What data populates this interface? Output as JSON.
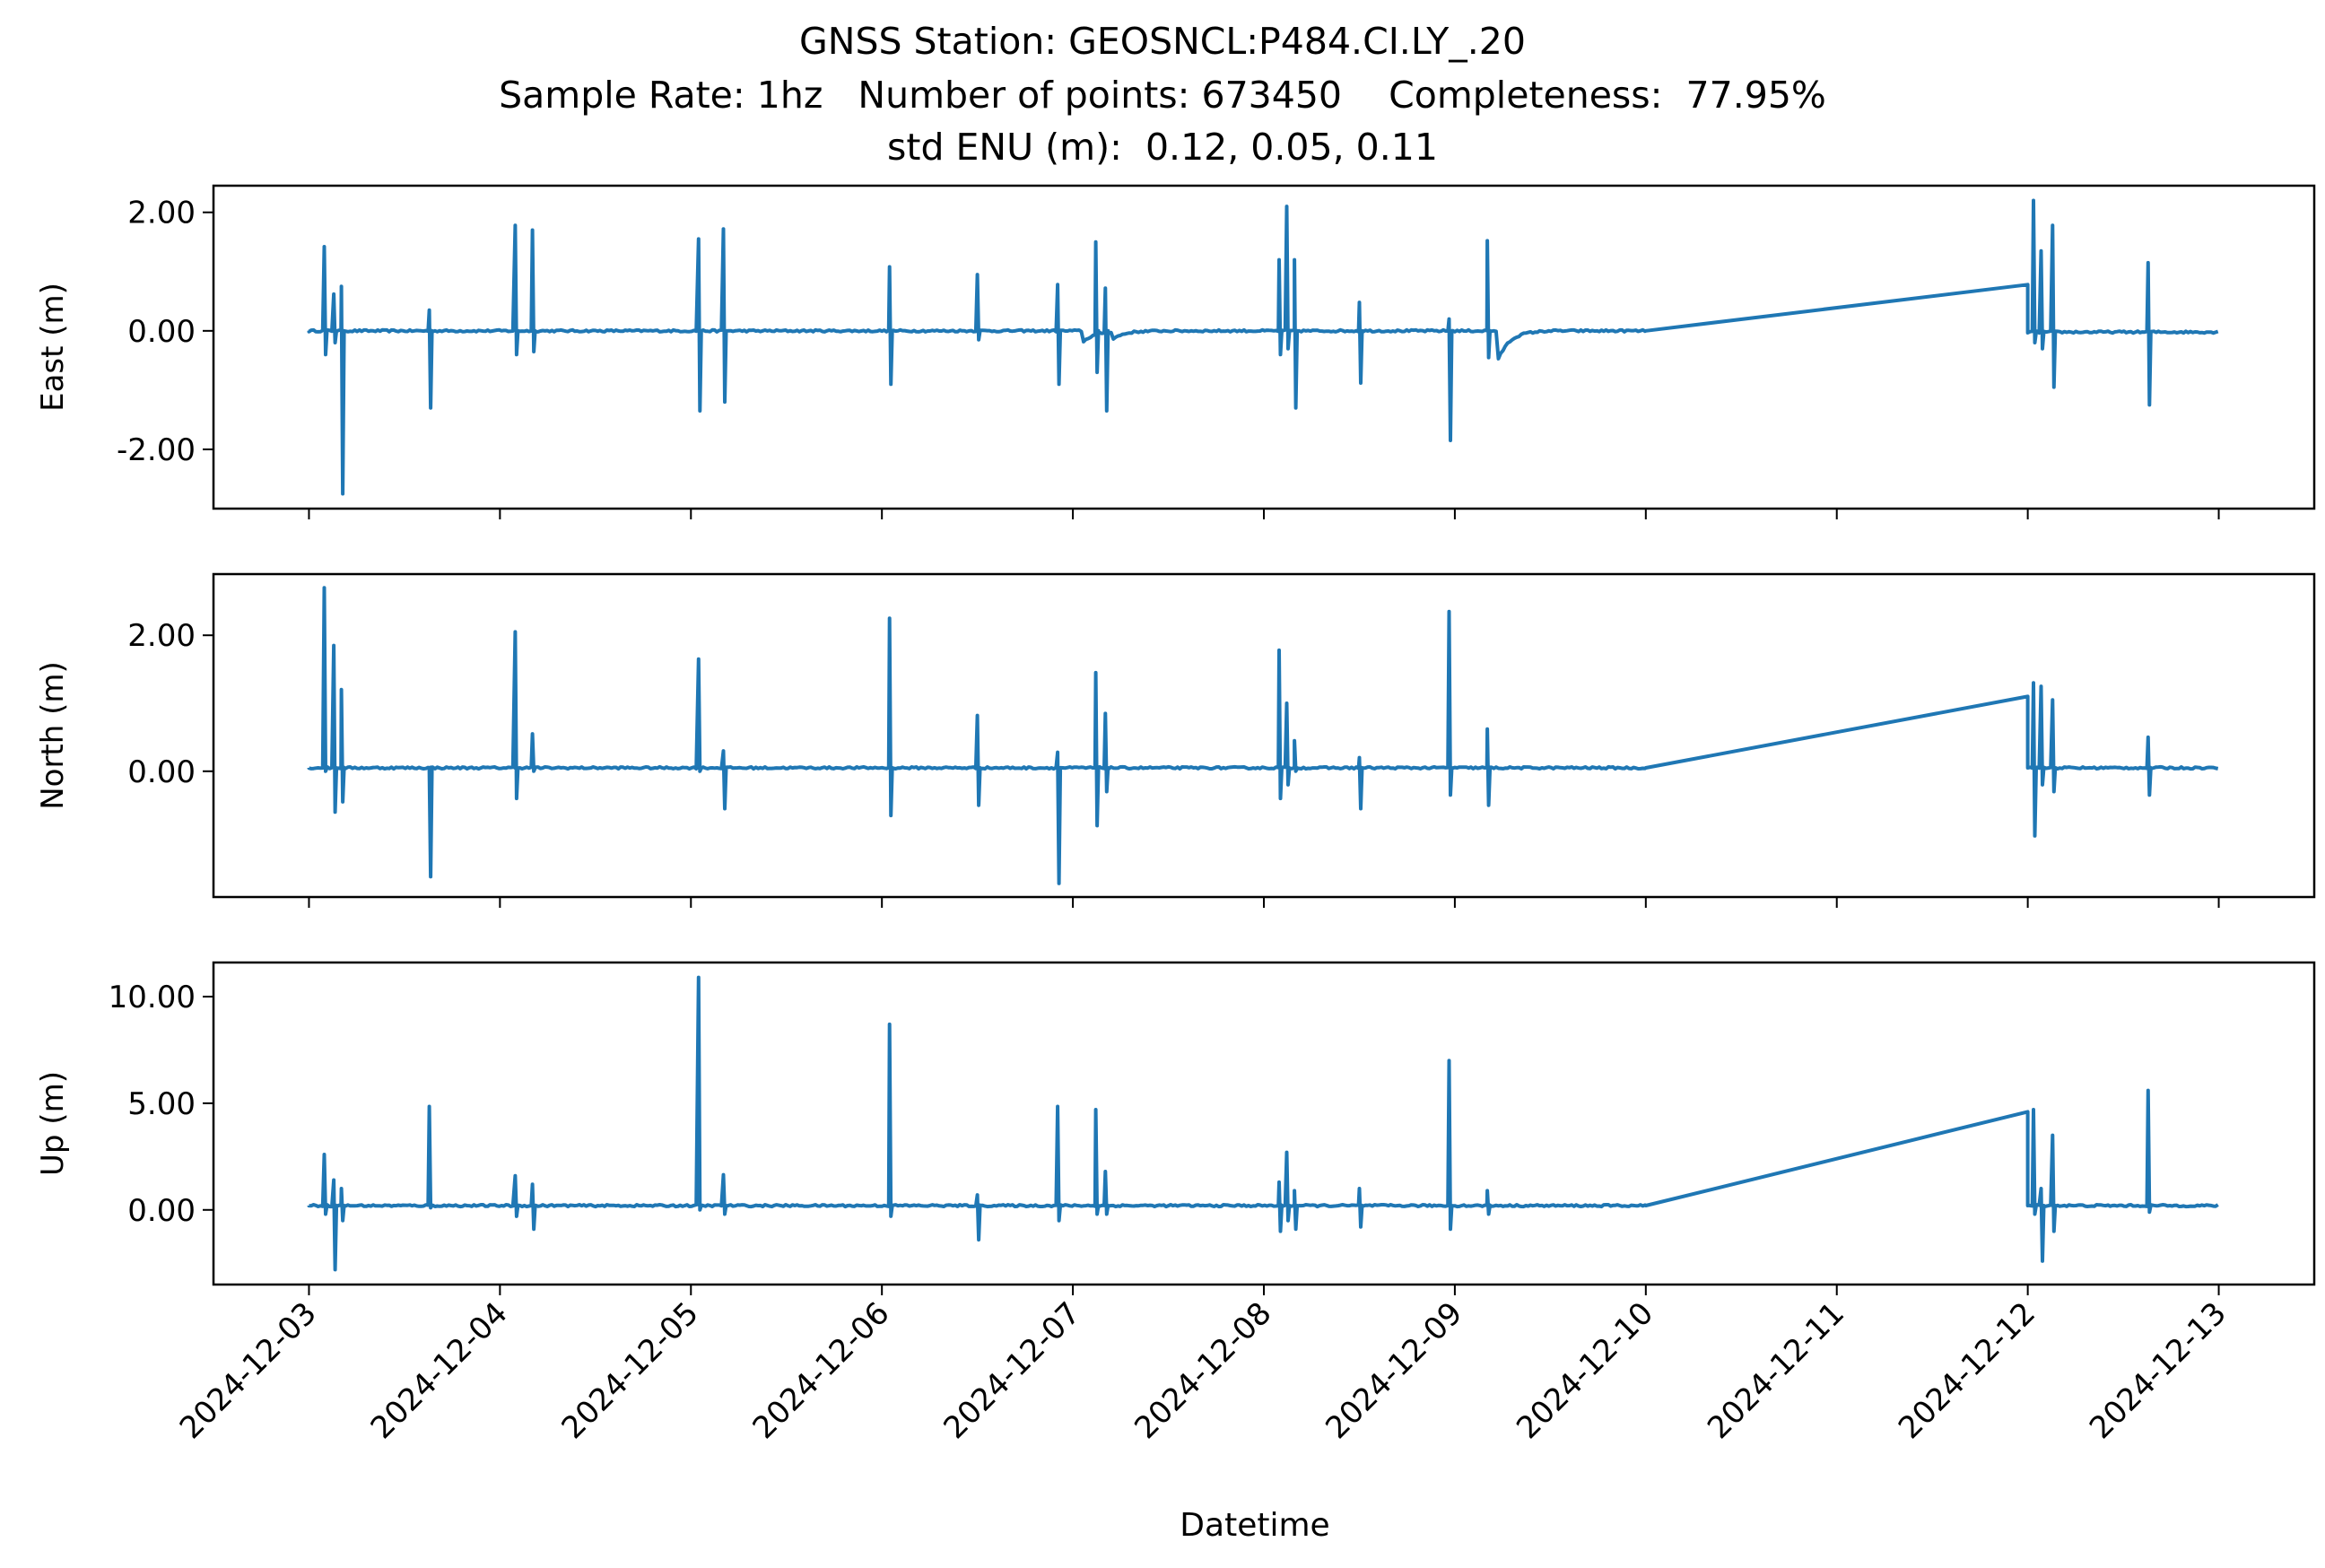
{
  "figure": {
    "title_lines": [
      "GNSS Station: GEOSNCL:P484.CI.LY_.20",
      "Sample Rate: 1hz   Number of points: 673450    Completeness:  77.95%",
      "std ENU (m):  0.12, 0.05, 0.11"
    ]
  },
  "chart_data": {
    "type": "line",
    "title": "GNSS Station: GEOSNCL:P484.CI.LY_.20",
    "subtitle": "Sample Rate: 1hz   Number of points: 673450    Completeness:  77.95%   std ENU (m):  0.12, 0.05, 0.11",
    "xlabel": "Datetime",
    "x_range_days": [
      -0.5,
      10.5
    ],
    "x_ticks": [
      {
        "day": 0,
        "label": "2024-12-03"
      },
      {
        "day": 1,
        "label": "2024-12-04"
      },
      {
        "day": 2,
        "label": "2024-12-05"
      },
      {
        "day": 3,
        "label": "2024-12-06"
      },
      {
        "day": 4,
        "label": "2024-12-07"
      },
      {
        "day": 5,
        "label": "2024-12-08"
      },
      {
        "day": 6,
        "label": "2024-12-09"
      },
      {
        "day": 7,
        "label": "2024-12-10"
      },
      {
        "day": 8,
        "label": "2024-12-11"
      },
      {
        "day": 9,
        "label": "2024-12-12"
      },
      {
        "day": 10,
        "label": "2024-12-13"
      }
    ],
    "line_color": "#1f77b4",
    "panels": [
      {
        "name": "east",
        "ylabel": "East (m)",
        "ylim": [
          -3.0,
          2.45
        ],
        "yticks": [
          {
            "v": 2,
            "label": "2.00"
          },
          {
            "v": 0,
            "label": "0.00"
          },
          {
            "v": -2,
            "label": "-2.00"
          }
        ],
        "baseline_start": [
          0,
          0.0
        ],
        "baseline_end": [
          7.0,
          0.0
        ],
        "gap_to": [
          9.0,
          0.78
        ],
        "tail_end": [
          10.0,
          -0.02
        ],
        "dips": [
          {
            "x": 4.05,
            "y": -0.2
          },
          {
            "x": 4.2,
            "y": -0.15
          },
          {
            "x": 6.22,
            "y": -0.55
          }
        ],
        "spikes": [
          {
            "x": 0.08,
            "hi": 1.42,
            "lo": -0.4
          },
          {
            "x": 0.13,
            "hi": 0.62,
            "lo": -0.2
          },
          {
            "x": 0.17,
            "hi": 0.75,
            "lo": -2.75
          },
          {
            "x": 0.63,
            "hi": 0.35,
            "lo": -1.3
          },
          {
            "x": 1.08,
            "hi": 1.78,
            "lo": -0.4
          },
          {
            "x": 1.17,
            "hi": 1.7,
            "lo": -0.35
          },
          {
            "x": 2.04,
            "hi": 1.55,
            "lo": -1.35
          },
          {
            "x": 2.17,
            "hi": 1.72,
            "lo": -1.2
          },
          {
            "x": 3.04,
            "hi": 1.08,
            "lo": -0.9
          },
          {
            "x": 3.5,
            "hi": 0.95,
            "lo": -0.15
          },
          {
            "x": 3.92,
            "hi": 0.78,
            "lo": -0.9
          },
          {
            "x": 4.12,
            "hi": 1.5,
            "lo": -0.7
          },
          {
            "x": 4.17,
            "hi": 0.72,
            "lo": -1.35
          },
          {
            "x": 5.08,
            "hi": 1.2,
            "lo": -0.4
          },
          {
            "x": 5.12,
            "hi": 2.1,
            "lo": -0.3
          },
          {
            "x": 5.16,
            "hi": 1.2,
            "lo": -1.3
          },
          {
            "x": 5.5,
            "hi": 0.48,
            "lo": -0.88
          },
          {
            "x": 5.97,
            "hi": 0.2,
            "lo": -1.85
          },
          {
            "x": 6.17,
            "hi": 1.52,
            "lo": -0.45
          },
          {
            "x": 9.03,
            "hi": 2.2,
            "lo": -0.2
          },
          {
            "x": 9.07,
            "hi": 1.35,
            "lo": -0.3
          },
          {
            "x": 9.13,
            "hi": 1.78,
            "lo": -0.95
          },
          {
            "x": 9.63,
            "hi": 1.15,
            "lo": -1.25
          }
        ]
      },
      {
        "name": "north",
        "ylabel": "North (m)",
        "ylim": [
          -1.85,
          2.9
        ],
        "yticks": [
          {
            "v": 2,
            "label": "2.00"
          },
          {
            "v": 0,
            "label": "0.00"
          }
        ],
        "baseline_start": [
          0,
          0.05
        ],
        "baseline_end": [
          7.0,
          0.05
        ],
        "gap_to": [
          9.0,
          1.1
        ],
        "tail_end": [
          10.0,
          0.05
        ],
        "dips": [],
        "spikes": [
          {
            "x": 0.08,
            "hi": 2.7,
            "lo": 0.0
          },
          {
            "x": 0.13,
            "hi": 1.85,
            "lo": -0.6
          },
          {
            "x": 0.17,
            "hi": 1.2,
            "lo": -0.45
          },
          {
            "x": 0.63,
            "hi": 0.05,
            "lo": -1.55
          },
          {
            "x": 1.08,
            "hi": 2.05,
            "lo": -0.4
          },
          {
            "x": 1.17,
            "hi": 0.55,
            "lo": 0.0
          },
          {
            "x": 2.04,
            "hi": 1.65,
            "lo": 0.0
          },
          {
            "x": 2.17,
            "hi": 0.3,
            "lo": -0.55
          },
          {
            "x": 3.04,
            "hi": 2.25,
            "lo": -0.65
          },
          {
            "x": 3.5,
            "hi": 0.82,
            "lo": -0.5
          },
          {
            "x": 3.92,
            "hi": 0.28,
            "lo": -1.65
          },
          {
            "x": 4.12,
            "hi": 1.45,
            "lo": -0.8
          },
          {
            "x": 4.17,
            "hi": 0.85,
            "lo": -0.3
          },
          {
            "x": 5.08,
            "hi": 1.78,
            "lo": -0.4
          },
          {
            "x": 5.12,
            "hi": 1.0,
            "lo": -0.2
          },
          {
            "x": 5.16,
            "hi": 0.45,
            "lo": 0.0
          },
          {
            "x": 5.5,
            "hi": 0.2,
            "lo": -0.55
          },
          {
            "x": 5.97,
            "hi": 2.35,
            "lo": -0.35
          },
          {
            "x": 6.17,
            "hi": 0.62,
            "lo": -0.5
          },
          {
            "x": 9.03,
            "hi": 1.3,
            "lo": -0.95
          },
          {
            "x": 9.07,
            "hi": 1.25,
            "lo": -0.2
          },
          {
            "x": 9.13,
            "hi": 1.05,
            "lo": -0.3
          },
          {
            "x": 9.63,
            "hi": 0.5,
            "lo": -0.35
          }
        ]
      },
      {
        "name": "up",
        "ylabel": "Up (m)",
        "ylim": [
          -3.5,
          11.6
        ],
        "yticks": [
          {
            "v": 10,
            "label": "10.00"
          },
          {
            "v": 5,
            "label": "5.00"
          },
          {
            "v": 0,
            "label": "0.00"
          }
        ],
        "baseline_start": [
          0,
          0.2
        ],
        "baseline_end": [
          7.0,
          0.2
        ],
        "gap_to": [
          9.0,
          4.6
        ],
        "tail_end": [
          10.0,
          0.2
        ],
        "dips": [],
        "spikes": [
          {
            "x": 0.08,
            "hi": 2.6,
            "lo": -0.2
          },
          {
            "x": 0.13,
            "hi": 1.4,
            "lo": -2.8
          },
          {
            "x": 0.17,
            "hi": 1.0,
            "lo": -0.5
          },
          {
            "x": 0.63,
            "hi": 4.85,
            "lo": 0.1
          },
          {
            "x": 1.08,
            "hi": 1.6,
            "lo": -0.3
          },
          {
            "x": 1.17,
            "hi": 1.2,
            "lo": -0.9
          },
          {
            "x": 2.04,
            "hi": 10.9,
            "lo": 0.0
          },
          {
            "x": 2.17,
            "hi": 1.65,
            "lo": -0.2
          },
          {
            "x": 3.04,
            "hi": 8.7,
            "lo": -0.3
          },
          {
            "x": 3.5,
            "hi": 0.7,
            "lo": -1.4
          },
          {
            "x": 3.92,
            "hi": 4.85,
            "lo": -0.5
          },
          {
            "x": 4.12,
            "hi": 4.7,
            "lo": -0.2
          },
          {
            "x": 4.17,
            "hi": 1.8,
            "lo": -0.2
          },
          {
            "x": 5.08,
            "hi": 1.3,
            "lo": -1.0
          },
          {
            "x": 5.12,
            "hi": 2.7,
            "lo": -0.5
          },
          {
            "x": 5.16,
            "hi": 0.9,
            "lo": -0.9
          },
          {
            "x": 5.5,
            "hi": 1.0,
            "lo": -0.8
          },
          {
            "x": 5.97,
            "hi": 7.0,
            "lo": -0.9
          },
          {
            "x": 6.17,
            "hi": 0.9,
            "lo": -0.2
          },
          {
            "x": 9.03,
            "hi": 4.7,
            "lo": -0.2
          },
          {
            "x": 9.07,
            "hi": 1.0,
            "lo": -2.4
          },
          {
            "x": 9.13,
            "hi": 3.5,
            "lo": -1.0
          },
          {
            "x": 9.63,
            "hi": 5.6,
            "lo": -0.1
          }
        ]
      }
    ]
  }
}
